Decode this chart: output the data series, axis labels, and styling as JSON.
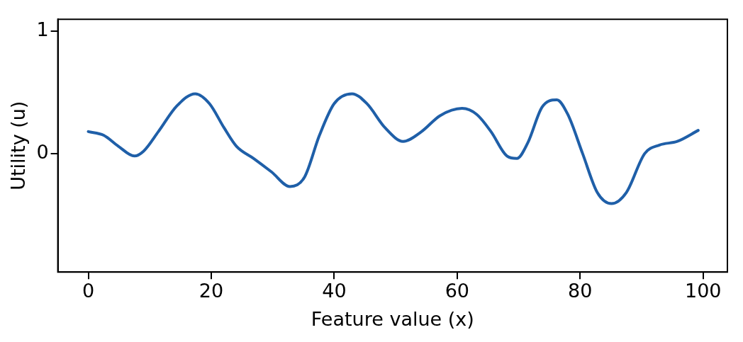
{
  "chart_data": {
    "type": "line",
    "xlabel": "Feature value (x)",
    "ylabel": "Utility (u)",
    "x": [
      0,
      2.5,
      4.9,
      7.5,
      9,
      11.4,
      14.4,
      17.4,
      19.7,
      22.1,
      24.1,
      26.9,
      29.8,
      32.8,
      35.2,
      37.6,
      40,
      42.9,
      45.3,
      48.3,
      51.2,
      54.2,
      57.2,
      60.8,
      63.2,
      65.5,
      68.1,
      69.7,
      71.5,
      73.8,
      76.2,
      78,
      80.4,
      82.8,
      85.1,
      87.5,
      90.5,
      92.9,
      95.8,
      99.2
    ],
    "series": [
      {
        "color": "#1f5fa8",
        "values": [
          0.18,
          0.15,
          0.06,
          -0.02,
          0.02,
          0.18,
          0.39,
          0.49,
          0.41,
          0.21,
          0.06,
          -0.04,
          -0.15,
          -0.27,
          -0.19,
          0.15,
          0.41,
          0.49,
          0.41,
          0.21,
          0.1,
          0.18,
          0.31,
          0.37,
          0.32,
          0.18,
          -0.02,
          -0.04,
          0.09,
          0.38,
          0.44,
          0.32,
          0,
          -0.32,
          -0.41,
          -0.32,
          0,
          0.07,
          0.1,
          0.19
        ]
      }
    ],
    "xlim": [
      -4.95,
      103.95
    ],
    "ylim": [
      -0.97,
      1.1
    ],
    "xticks": [
      0,
      20,
      40,
      60,
      80,
      100
    ],
    "yticks": [
      0,
      1
    ],
    "grid": false,
    "legend": false,
    "marker": "none",
    "line_style": "solid"
  }
}
